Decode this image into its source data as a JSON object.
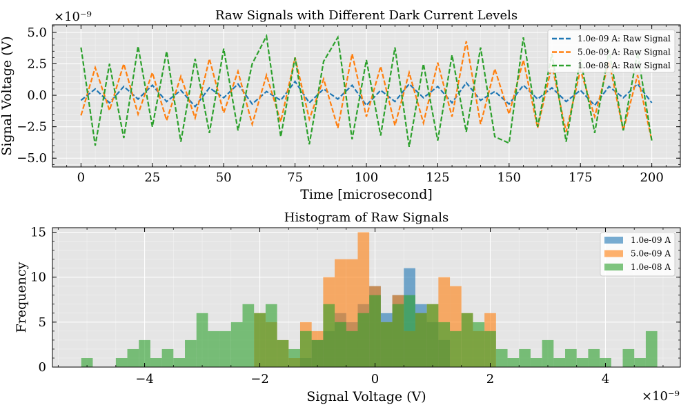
{
  "chart_data": [
    {
      "type": "line",
      "title": "Raw Signals with Different Dark Current Levels",
      "xlabel": "Time [microsecond]",
      "ylabel": "Signal Voltage (V)",
      "y_scale_label": "×10⁻⁹",
      "xlim": [
        -10,
        210
      ],
      "ylim": [
        -5.7,
        5.6
      ],
      "x_ticks": [
        "0",
        "25",
        "50",
        "75",
        "100",
        "125",
        "150",
        "175",
        "200"
      ],
      "y_ticks": [
        "−5.0",
        "−2.5",
        "0.0",
        "2.5",
        "5.0"
      ],
      "grid": true,
      "legend_position": "top-right",
      "series": [
        {
          "name": "1.0e-09 A: Raw Signal",
          "color": "#1f77b4",
          "x": [
            0,
            5,
            10,
            15,
            20,
            25,
            30,
            35,
            40,
            45,
            50,
            55,
            60,
            65,
            70,
            75,
            80,
            85,
            90,
            95,
            100,
            105,
            110,
            115,
            120,
            125,
            130,
            135,
            140,
            145,
            150,
            155,
            160,
            165,
            170,
            175,
            180,
            185,
            190,
            195,
            200
          ],
          "y": [
            -0.4,
            0.5,
            -0.6,
            0.7,
            -0.3,
            0.8,
            -0.5,
            0.4,
            -0.9,
            0.6,
            -0.2,
            0.9,
            -0.7,
            0.3,
            -0.4,
            1.1,
            -0.6,
            0.5,
            -0.3,
            0.8,
            -0.8,
            0.4,
            -0.5,
            0.9,
            -0.2,
            0.7,
            -0.6,
            1.0,
            -0.4,
            0.3,
            -0.7,
            0.8,
            -0.3,
            0.6,
            -0.5,
            0.4,
            -0.8,
            0.7,
            -0.2,
            0.9,
            -0.6
          ]
        },
        {
          "name": "5.0e-09 A: Raw Signal",
          "color": "#ff7f0e",
          "x": [
            0,
            5,
            10,
            15,
            20,
            25,
            30,
            35,
            40,
            45,
            50,
            55,
            60,
            65,
            70,
            75,
            80,
            85,
            90,
            95,
            100,
            105,
            110,
            115,
            120,
            125,
            130,
            135,
            140,
            145,
            150,
            155,
            160,
            165,
            170,
            175,
            180,
            185,
            190,
            195,
            200
          ],
          "y": [
            -1.6,
            2.2,
            -1.2,
            2.5,
            -1.5,
            1.8,
            -2.0,
            1.5,
            -1.8,
            2.9,
            -1.4,
            1.9,
            -2.3,
            1.6,
            -2.1,
            3.0,
            -1.9,
            1.3,
            -2.6,
            3.3,
            -1.7,
            2.3,
            -2.4,
            1.8,
            -2.2,
            2.6,
            -1.7,
            4.3,
            -2.3,
            2.1,
            -1.5,
            2.8,
            -2.6,
            2.4,
            -2.9,
            2.0,
            -1.7,
            2.7,
            -2.8,
            1.6,
            -3.6
          ]
        },
        {
          "name": "1.0e-08 A: Raw Signal",
          "color": "#2ca02c",
          "x": [
            0,
            5,
            10,
            15,
            20,
            25,
            30,
            35,
            40,
            45,
            50,
            55,
            60,
            65,
            70,
            75,
            80,
            85,
            90,
            95,
            100,
            105,
            110,
            115,
            120,
            125,
            130,
            135,
            140,
            145,
            150,
            155,
            160,
            165,
            170,
            175,
            180,
            185,
            190,
            195,
            200
          ],
          "y": [
            3.8,
            -4.0,
            2.5,
            -3.4,
            3.9,
            -2.5,
            3.5,
            -3.7,
            2.9,
            -3.0,
            3.7,
            -2.8,
            2.5,
            4.7,
            -3.3,
            3.0,
            -3.9,
            2.7,
            4.6,
            -3.5,
            2.8,
            -3.2,
            3.8,
            -4.1,
            2.5,
            -3.6,
            3.2,
            -2.9,
            3.8,
            -3.3,
            -3.8,
            4.6,
            -2.5,
            3.3,
            -3.7,
            2.9,
            -3.0,
            3.6,
            -2.8,
            3.4,
            -3.6
          ]
        }
      ]
    },
    {
      "type": "bar",
      "title": "Histogram of Raw Signals",
      "xlabel": "Signal Voltage (V)",
      "ylabel": "Frequency",
      "x_scale_label": "×10⁻⁹",
      "xlim": [
        -5.6,
        5.3
      ],
      "ylim": [
        0,
        15.5
      ],
      "x_ticks": [
        "−4",
        "−2",
        "0",
        "2",
        "4"
      ],
      "y_ticks": [
        "0",
        "5",
        "10",
        "15"
      ],
      "grid": true,
      "legend_position": "top-right",
      "series": [
        {
          "name": "1.0e-09 A",
          "color": "#1f77b4",
          "bin_edges": [
            -1.3,
            -1.1,
            -0.9,
            -0.7,
            -0.5,
            -0.3,
            -0.1,
            0.1,
            0.3,
            0.5,
            0.7,
            0.9,
            1.1,
            1.3
          ],
          "counts": [
            1,
            3,
            4,
            6,
            5,
            7,
            9,
            6,
            8,
            11,
            7,
            5,
            3
          ]
        },
        {
          "name": "5.0e-09 A",
          "color": "#ff7f0e",
          "bin_edges": [
            -2.1,
            -1.9,
            -1.7,
            -1.5,
            -1.3,
            -1.1,
            -0.9,
            -0.7,
            -0.5,
            -0.3,
            -0.1,
            0.1,
            0.3,
            0.5,
            0.7,
            0.9,
            1.1,
            1.3,
            1.5,
            1.7,
            1.9,
            2.1
          ],
          "counts": [
            6,
            5,
            3,
            1,
            5,
            4,
            10,
            12,
            12,
            15,
            9,
            5,
            8,
            4,
            6,
            7,
            10,
            9,
            6,
            4,
            6
          ]
        },
        {
          "name": "1.0e-08 A",
          "color": "#2ca02c",
          "bin_edges": [
            -5.1,
            -4.9,
            -4.7,
            -4.5,
            -4.3,
            -4.1,
            -3.9,
            -3.7,
            -3.5,
            -3.3,
            -3.1,
            -2.9,
            -2.7,
            -2.5,
            -2.3,
            -2.1,
            -1.9,
            -1.7,
            -1.5,
            -1.3,
            -1.1,
            -0.9,
            -0.7,
            -0.5,
            -0.3,
            -0.1,
            0.1,
            0.3,
            0.5,
            0.7,
            0.9,
            1.1,
            1.3,
            1.5,
            1.7,
            1.9,
            2.1,
            2.3,
            2.5,
            2.7,
            2.9,
            3.1,
            3.3,
            3.5,
            3.7,
            3.9,
            4.1,
            4.3,
            4.5,
            4.7,
            4.9
          ],
          "counts": [
            1,
            0,
            0,
            1,
            2,
            3,
            1,
            2,
            1,
            3,
            6,
            4,
            4,
            5,
            7,
            6,
            7,
            3,
            2,
            4,
            3,
            7,
            5,
            4,
            6,
            8,
            5,
            7,
            8,
            6,
            7,
            5,
            4,
            6,
            5,
            4,
            2,
            1,
            2,
            1,
            3,
            1,
            2,
            1,
            2,
            1,
            0,
            2,
            1,
            4
          ]
        }
      ]
    }
  ]
}
